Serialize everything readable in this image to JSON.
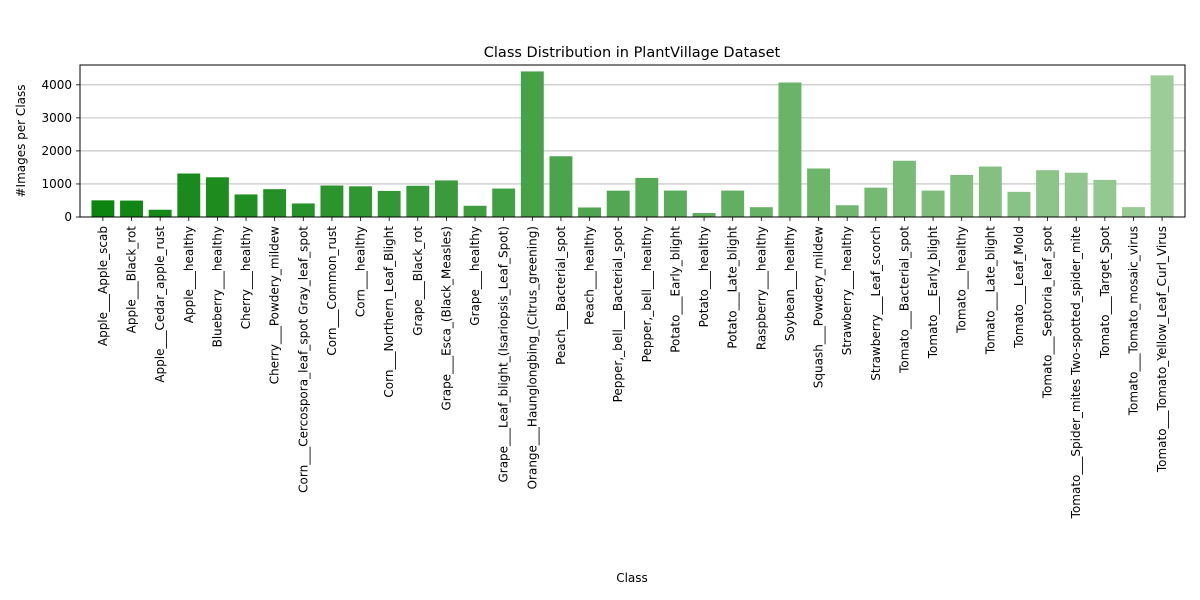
{
  "chart_data": {
    "type": "bar",
    "title": "Class Distribution in PlantVillage Dataset",
    "xlabel": "Class",
    "ylabel": "#Images per Class",
    "ylim": [
      0,
      4600
    ],
    "yticks": [
      0,
      1000,
      2000,
      3000,
      4000
    ],
    "grid": "y",
    "colors": {
      "start": "#0d8410",
      "end": "#9ccc98"
    },
    "categories": [
      "Apple___Apple_scab",
      "Apple___Black_rot",
      "Apple___Cedar_apple_rust",
      "Apple___healthy",
      "Blueberry___healthy",
      "Cherry___healthy",
      "Cherry___Powdery_mildew",
      "Corn___Cercospora_leaf_spot Gray_leaf_spot",
      "Corn___Common_rust",
      "Corn___healthy",
      "Corn___Northern_Leaf_Blight",
      "Grape___Black_rot",
      "Grape___Esca_(Black_Measles)",
      "Grape___healthy",
      "Grape___Leaf_blight_(Isariopsis_Leaf_Spot)",
      "Orange___Haunglongbing_(Citrus_greening)",
      "Peach___Bacterial_spot",
      "Peach___healthy",
      "Pepper,_bell___Bacterial_spot",
      "Pepper,_bell___healthy",
      "Potato___Early_blight",
      "Potato___healthy",
      "Potato___Late_blight",
      "Raspberry___healthy",
      "Soybean___healthy",
      "Squash___Powdery_mildew",
      "Strawberry___healthy",
      "Strawberry___Leaf_scorch",
      "Tomato___Bacterial_spot",
      "Tomato___Early_blight",
      "Tomato___healthy",
      "Tomato___Late_blight",
      "Tomato___Leaf_Mold",
      "Tomato___Septoria_leaf_spot",
      "Tomato___Spider_mites Two-spotted_spider_mite",
      "Tomato___Target_Spot",
      "Tomato___Tomato_mosaic_virus",
      "Tomato___Tomato_Yellow_Leaf_Curl_Virus"
    ],
    "values": [
      504,
      497,
      220,
      1316,
      1202,
      684,
      842,
      410,
      953,
      929,
      788,
      944,
      1107,
      339,
      861,
      4405,
      1838,
      288,
      797,
      1183,
      800,
      121,
      800,
      297,
      4070,
      1468,
      356,
      888,
      1702,
      800,
      1273,
      1527,
      761,
      1417,
      1341,
      1123,
      299,
      4286
    ]
  }
}
